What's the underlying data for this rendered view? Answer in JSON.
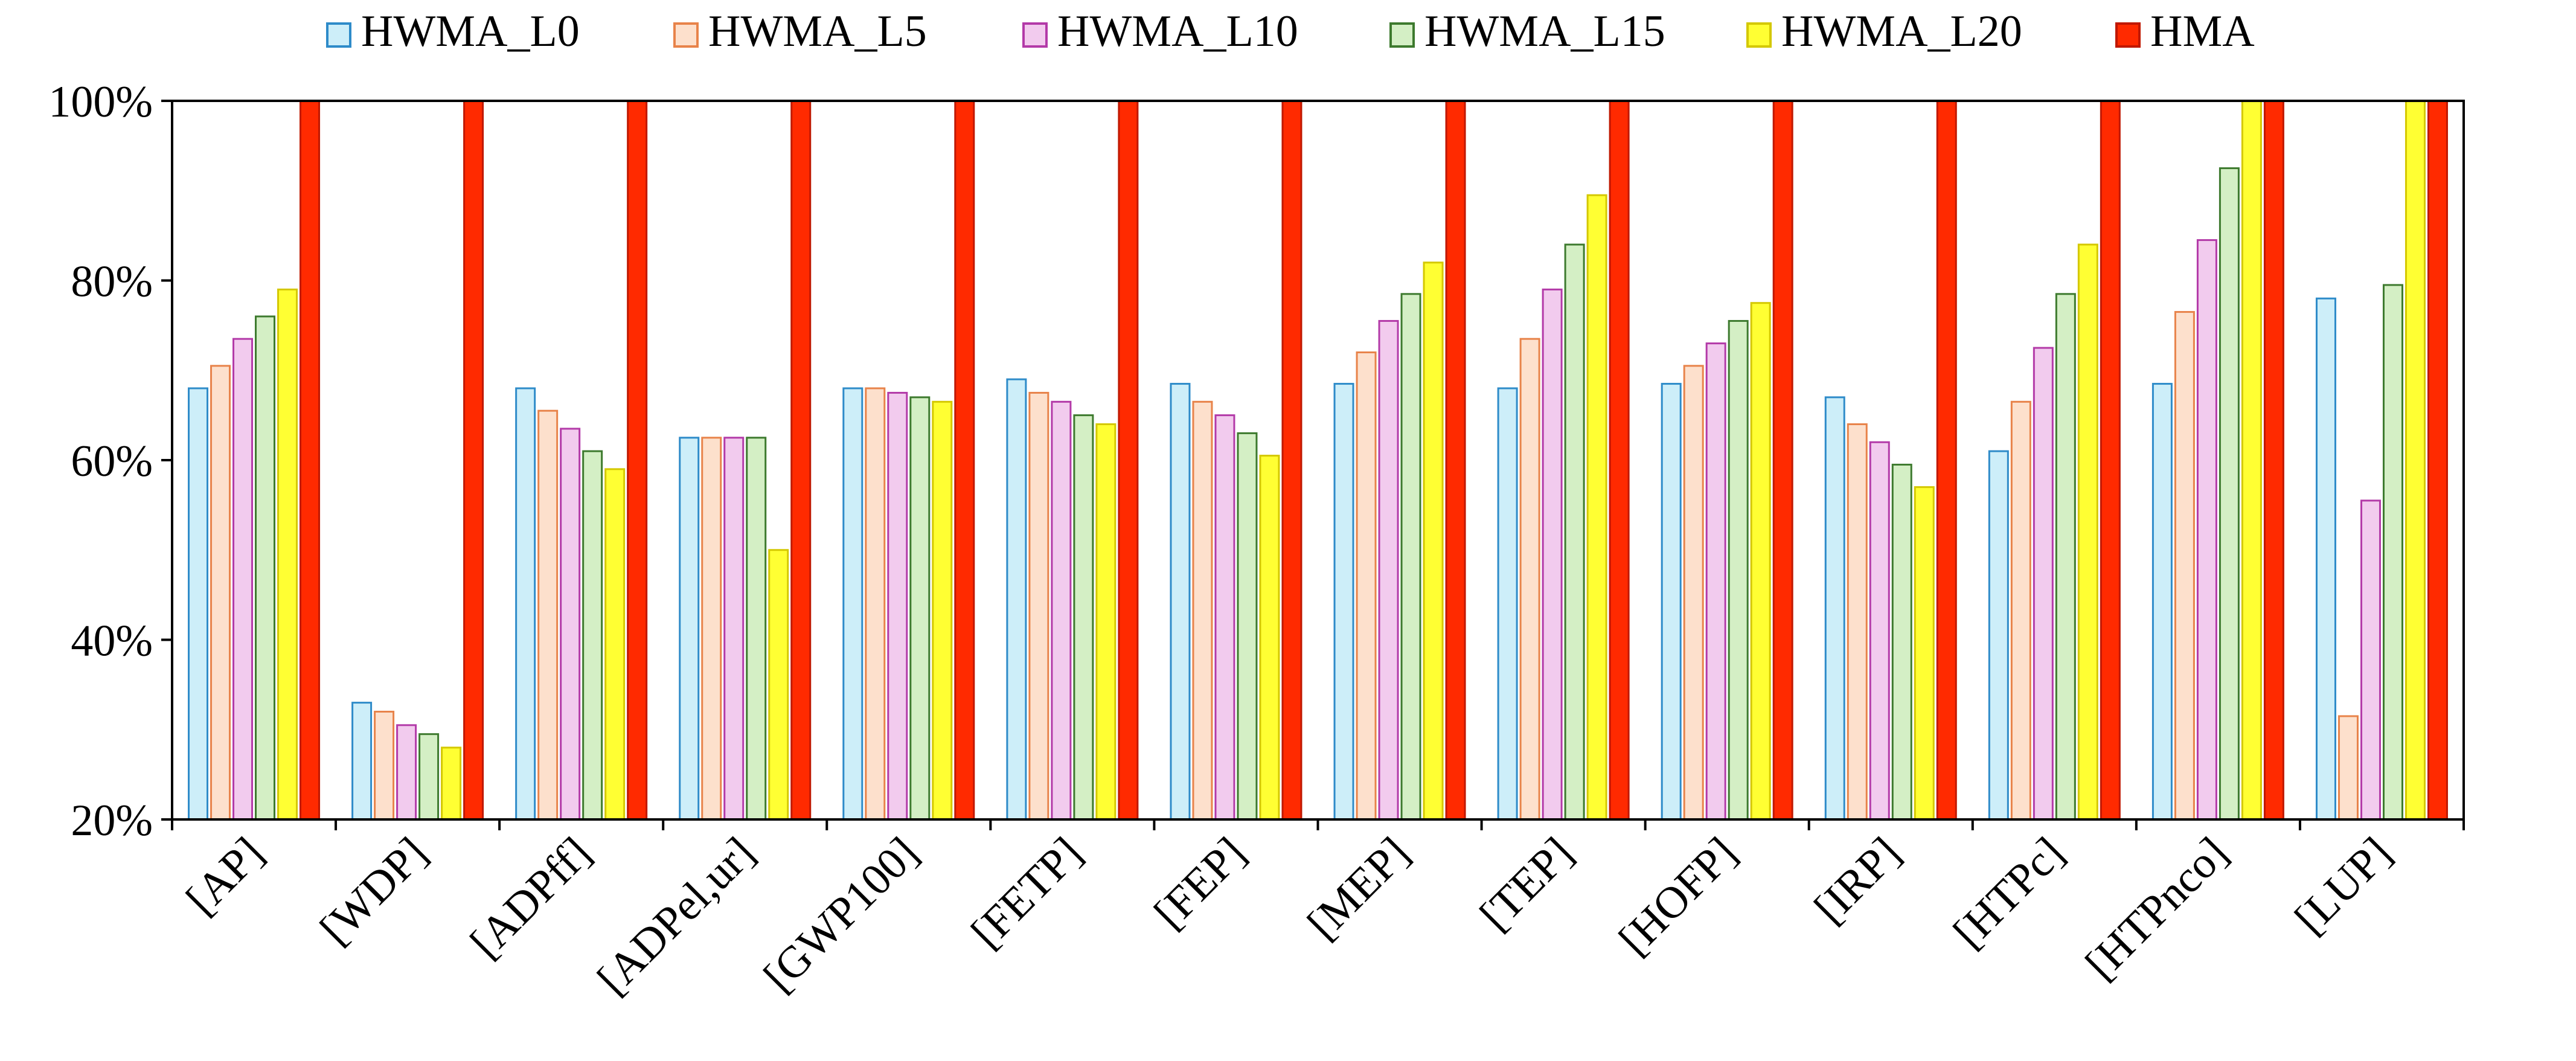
{
  "chart_data": {
    "type": "bar",
    "categories": [
      "[AP]",
      "[WDP]",
      "[ADPff]",
      "[ADPel,ur]",
      "[GWP100]",
      "[FETP]",
      "[FEP]",
      "[MEP]",
      "[TEP]",
      "[HOFP]",
      "[IRP]",
      "[HTPc]",
      "[HTPnco]",
      "[LUP]"
    ],
    "series": [
      {
        "name": "HWMA_L0",
        "fill": "#cdeef9",
        "stroke": "#2e8bc9",
        "values": [
          68,
          33,
          68,
          62.5,
          68,
          69,
          68.5,
          68.5,
          68,
          68.5,
          67,
          61,
          68.5,
          78
        ]
      },
      {
        "name": "HWMA_L5",
        "fill": "#fde0cc",
        "stroke": "#e8834a",
        "values": [
          70.5,
          32,
          65.5,
          62.5,
          68,
          67.5,
          66.5,
          72,
          73.5,
          70.5,
          64,
          66.5,
          76.5,
          31.5
        ]
      },
      {
        "name": "HWMA_L10",
        "fill": "#f2cbee",
        "stroke": "#b33aa8",
        "values": [
          73.5,
          30.5,
          63.5,
          62.5,
          67.5,
          66.5,
          65,
          75.5,
          79,
          73,
          62,
          72.5,
          84.5,
          55.5
        ]
      },
      {
        "name": "HWMA_L15",
        "fill": "#d4efc5",
        "stroke": "#3d7a2e",
        "values": [
          76,
          29.5,
          61,
          62.5,
          67,
          65,
          63,
          78.5,
          84,
          75.5,
          59.5,
          78.5,
          92.5,
          79.5
        ]
      },
      {
        "name": "HWMA_L20",
        "fill": "#ffff33",
        "stroke": "#d4c800",
        "values": [
          79,
          28,
          59,
          50,
          66.5,
          64,
          60.5,
          82,
          89.5,
          77.5,
          57,
          84,
          100,
          100
        ]
      },
      {
        "name": "HMA",
        "fill": "#ff2a00",
        "stroke": "#c01800",
        "values": [
          100,
          100,
          100,
          100,
          100,
          100,
          100,
          100,
          100,
          100,
          100,
          100,
          100,
          100
        ]
      }
    ],
    "y_ticks": [
      "20%",
      "40%",
      "60%",
      "80%",
      "100%"
    ],
    "y_tick_values": [
      20,
      40,
      60,
      80,
      100
    ],
    "ylim": [
      20,
      100
    ],
    "title": "",
    "xlabel": "",
    "ylabel": "",
    "grid": false,
    "legend_position": "top"
  }
}
